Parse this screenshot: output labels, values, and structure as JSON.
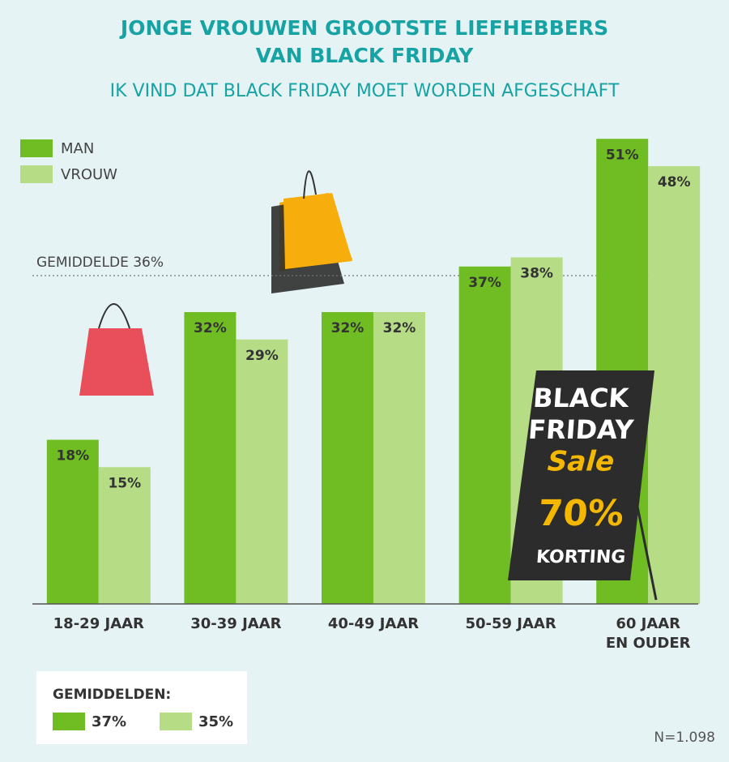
{
  "chart_data": {
    "type": "bar",
    "title": "JONGE VROUWEN GROOTSTE LIEFHEBBERS\nVAN BLACK FRIDAY",
    "subtitle": "IK VIND DAT BLACK FRIDAY MOET WORDEN AFGESCHAFT",
    "categories": [
      "18-29 JAAR",
      "30-39 JAAR",
      "40-49 JAAR",
      "50-59 JAAR",
      "60 JAAR\nEN OUDER"
    ],
    "series": [
      {
        "name": "MAN",
        "color": "#6fbd22",
        "values": [
          18,
          32,
          32,
          37,
          51
        ],
        "value_labels": [
          "18%",
          "32%",
          "32%",
          "37%",
          "51%"
        ]
      },
      {
        "name": "VROUW",
        "color": "#b6dc86",
        "values": [
          15,
          29,
          32,
          38,
          48
        ],
        "value_labels": [
          "15%",
          "29%",
          "32%",
          "38%",
          "48%"
        ]
      }
    ],
    "ylim": [
      0,
      50
    ],
    "reference_line": {
      "value": 36,
      "label": "GEMIDDELDE 36%"
    },
    "averages": {
      "title": "GEMIDDELDEN:",
      "values": [
        37,
        35
      ],
      "value_labels": [
        "37%",
        "35%"
      ]
    },
    "note": "N=1.098",
    "illustration": {
      "sign": [
        "BLACK",
        "FRIDAY",
        "Sale",
        "70%",
        "KORTING"
      ]
    }
  }
}
